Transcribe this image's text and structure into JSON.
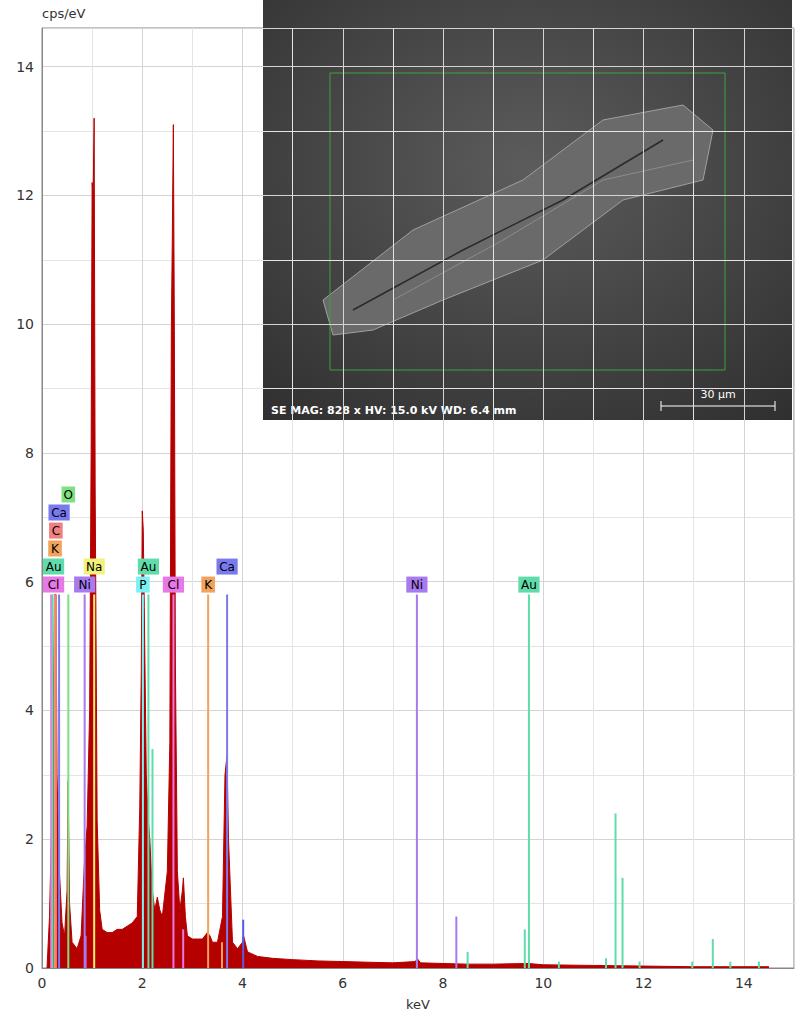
{
  "chart_data": {
    "type": "area",
    "x_label": "keV",
    "y_label": "cps/eV",
    "color": "#b50000",
    "x": [
      0.1,
      0.15,
      0.2,
      0.25,
      0.28,
      0.3,
      0.34,
      0.4,
      0.45,
      0.5,
      0.52,
      0.55,
      0.6,
      0.7,
      0.78,
      0.85,
      0.9,
      0.95,
      0.98,
      1.0,
      1.02,
      1.04,
      1.06,
      1.1,
      1.15,
      1.2,
      1.3,
      1.4,
      1.5,
      1.6,
      1.7,
      1.8,
      1.9,
      1.95,
      1.98,
      2.0,
      2.02,
      2.04,
      2.08,
      2.12,
      2.15,
      2.2,
      2.25,
      2.3,
      2.35,
      2.4,
      2.5,
      2.55,
      2.58,
      2.6,
      2.62,
      2.64,
      2.66,
      2.7,
      2.75,
      2.8,
      2.82,
      2.86,
      2.9,
      3.0,
      3.1,
      3.2,
      3.3,
      3.35,
      3.4,
      3.5,
      3.6,
      3.65,
      3.69,
      3.72,
      3.8,
      3.9,
      4.0,
      4.02,
      4.1,
      4.3,
      4.6,
      5.0,
      5.5,
      6.0,
      6.5,
      7.0,
      7.45,
      7.48,
      7.55,
      8.0,
      8.5,
      9.0,
      9.7,
      10.0,
      11.0,
      12.0,
      13.0,
      14.0,
      14.5
    ],
    "values": [
      0,
      0.8,
      2.5,
      5.8,
      5.8,
      3.0,
      1.6,
      0.7,
      0.5,
      1.2,
      2.9,
      1.0,
      0.4,
      0.3,
      0.5,
      1.7,
      2.2,
      4.0,
      8.0,
      12.2,
      12.0,
      13.2,
      7.5,
      2.3,
      0.9,
      0.6,
      0.55,
      0.55,
      0.6,
      0.6,
      0.65,
      0.7,
      0.8,
      2.5,
      4.6,
      7.1,
      6.8,
      5.6,
      3.0,
      2.3,
      2.0,
      1.2,
      0.9,
      1.1,
      0.9,
      0.8,
      1.5,
      3.5,
      9.9,
      11.4,
      13.1,
      9.9,
      4.8,
      1.5,
      0.9,
      1.2,
      1.4,
      0.8,
      0.5,
      0.45,
      0.45,
      0.45,
      0.55,
      0.5,
      0.4,
      0.4,
      0.8,
      3.0,
      3.3,
      2.0,
      0.4,
      0.3,
      0.4,
      0.5,
      0.25,
      0.18,
      0.15,
      0.13,
      0.11,
      0.1,
      0.09,
      0.08,
      0.1,
      0.15,
      0.08,
      0.07,
      0.06,
      0.06,
      0.07,
      0.05,
      0.04,
      0.03,
      0.02,
      0.02,
      0.02
    ],
    "xlim": [
      0,
      15
    ],
    "xticks": [
      0,
      2,
      4,
      6,
      8,
      10,
      12,
      14
    ],
    "ylim": [
      0,
      14.6
    ],
    "yticks": [
      0,
      2,
      4,
      6,
      8,
      10,
      12,
      14
    ],
    "grid": true,
    "element_lines": [
      {
        "label": "Cl",
        "x": 0.183,
        "height": 5.8,
        "color": "#e878e8"
      },
      {
        "label": "Au",
        "x": 0.212,
        "height": 5.8,
        "color": "#5fdcaa"
      },
      {
        "label": "K",
        "x": 0.26,
        "height": 5.8,
        "color": "#f2a25a"
      },
      {
        "label": "C",
        "x": 0.277,
        "height": 5.8,
        "color": "#f08080"
      },
      {
        "label": "Ca",
        "x": 0.341,
        "height": 5.8,
        "color": "#7a7af0"
      },
      {
        "label": "O",
        "x": 0.525,
        "height": 5.8,
        "color": "#7ee07e"
      },
      {
        "label": "Ni",
        "x": 0.851,
        "height": 5.8,
        "color": "#a77af0"
      },
      {
        "label": "Na",
        "x": 1.041,
        "height": 5.8,
        "color": "#f2f27a"
      },
      {
        "label": "P",
        "x": 2.013,
        "height": 5.8,
        "color": "#7af2f2"
      },
      {
        "label": "Au",
        "x": 2.123,
        "height": 5.8,
        "color": "#5fdcaa"
      },
      {
        "label": "Cl",
        "x": 2.622,
        "height": 5.8,
        "color": "#e878e8"
      },
      {
        "label": "K",
        "x": 3.314,
        "height": 5.8,
        "color": "#f2a25a"
      },
      {
        "label": "Ca",
        "x": 3.692,
        "height": 5.8,
        "color": "#7a7af0"
      },
      {
        "label": "Ni",
        "x": 7.478,
        "height": 5.8,
        "color": "#a77af0"
      },
      {
        "label": "Au",
        "x": 9.713,
        "height": 5.8,
        "color": "#5fdcaa"
      }
    ],
    "minor_lines": [
      {
        "x": 0.87,
        "height": 0.5,
        "color": "#a77af0"
      },
      {
        "x": 2.204,
        "height": 3.4,
        "color": "#5fdcaa"
      },
      {
        "x": 2.816,
        "height": 0.6,
        "color": "#e878e8"
      },
      {
        "x": 3.59,
        "height": 0.4,
        "color": "#f2a25a"
      },
      {
        "x": 4.013,
        "height": 0.75,
        "color": "#5a5ae6"
      },
      {
        "x": 8.265,
        "height": 0.8,
        "color": "#a77af0"
      },
      {
        "x": 8.49,
        "height": 0.25,
        "color": "#5fdcaa"
      },
      {
        "x": 9.63,
        "height": 0.6,
        "color": "#5fdcaa"
      },
      {
        "x": 10.31,
        "height": 0.1,
        "color": "#5fdcaa"
      },
      {
        "x": 11.25,
        "height": 0.15,
        "color": "#5fdcaa"
      },
      {
        "x": 11.44,
        "height": 2.4,
        "color": "#5fdcaa"
      },
      {
        "x": 11.58,
        "height": 1.4,
        "color": "#5fdcaa"
      },
      {
        "x": 11.92,
        "height": 0.1,
        "color": "#5fdcaa"
      },
      {
        "x": 12.97,
        "height": 0.1,
        "color": "#5fdcaa"
      },
      {
        "x": 13.38,
        "height": 0.45,
        "color": "#5fdcaa"
      },
      {
        "x": 13.73,
        "height": 0.1,
        "color": "#5fdcaa"
      },
      {
        "x": 14.3,
        "height": 0.1,
        "color": "#5fdcaa"
      }
    ]
  },
  "inset": {
    "info": "SE MAG: 828 x HV: 15.0 kV WD: 6.4 mm",
    "scale_bar": "30 µm"
  }
}
